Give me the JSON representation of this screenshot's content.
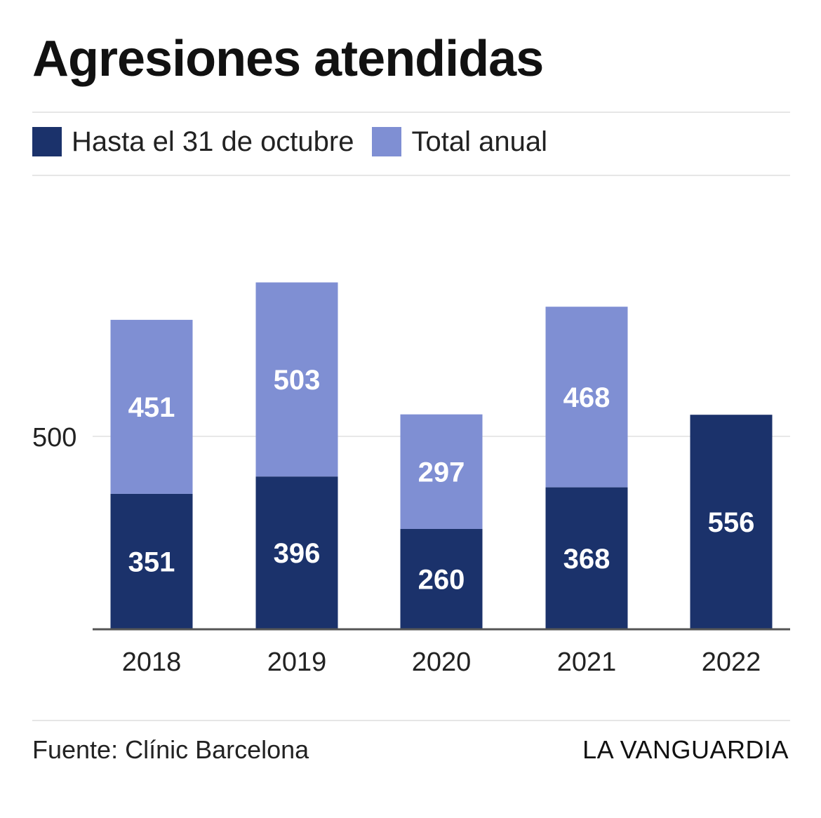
{
  "header": {
    "title": "Agresiones atendidas"
  },
  "legend": [
    {
      "label": "Hasta el 31 de octubre",
      "color": "#1b326b"
    },
    {
      "label": "Total anual",
      "color": "#7f8fd3"
    }
  ],
  "footer": {
    "source": "Fuente: Clínic Barcelona",
    "brand": "LA VANGUARDIA"
  },
  "chart_data": {
    "type": "bar",
    "stacked": true,
    "title": "Agresiones atendidas",
    "xlabel": "",
    "ylabel": "",
    "categories": [
      "2018",
      "2019",
      "2020",
      "2021",
      "2022"
    ],
    "series": [
      {
        "name": "Hasta el 31 de octubre",
        "color": "#1b326b",
        "values": [
          351,
          396,
          260,
          368,
          556
        ]
      },
      {
        "name": "Total anual",
        "color": "#7f8fd3",
        "values": [
          451,
          503,
          297,
          468,
          null
        ]
      }
    ],
    "y_ticks": [
      500
    ],
    "ylim": [
      0,
      1000
    ],
    "grid": true,
    "legend_position": "top-left"
  }
}
